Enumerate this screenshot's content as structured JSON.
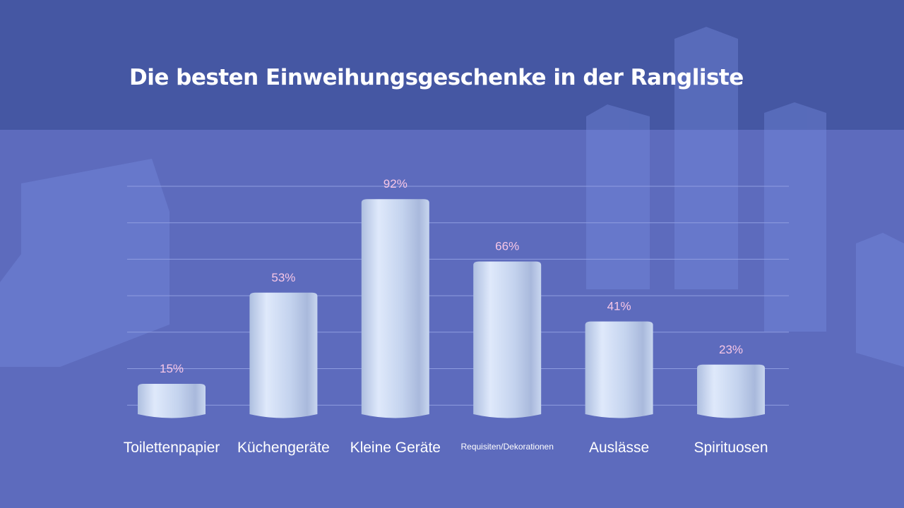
{
  "chart_data": {
    "type": "bar",
    "title": "Die besten Einweihungsgeschenke in der Rangliste",
    "categories": [
      "Toilettenpapier",
      "Küchengeräte",
      "Kleine Geräte",
      "Requisiten/Dekorationen",
      "Auslässe",
      "Spirituosen"
    ],
    "values": [
      15,
      53,
      92,
      66,
      41,
      23
    ],
    "data_labels": [
      "15%",
      "53%",
      "92%",
      "66%",
      "41%",
      "23%"
    ],
    "ylim": [
      0,
      100
    ],
    "grid": true,
    "bar_style": "3d-cylinder",
    "colors": {
      "bar": "#c9d8f0",
      "data_label": "#f6c6e6",
      "category_label": "#ffffff",
      "header": "#4557a3",
      "background": "#5d6bbd"
    }
  }
}
